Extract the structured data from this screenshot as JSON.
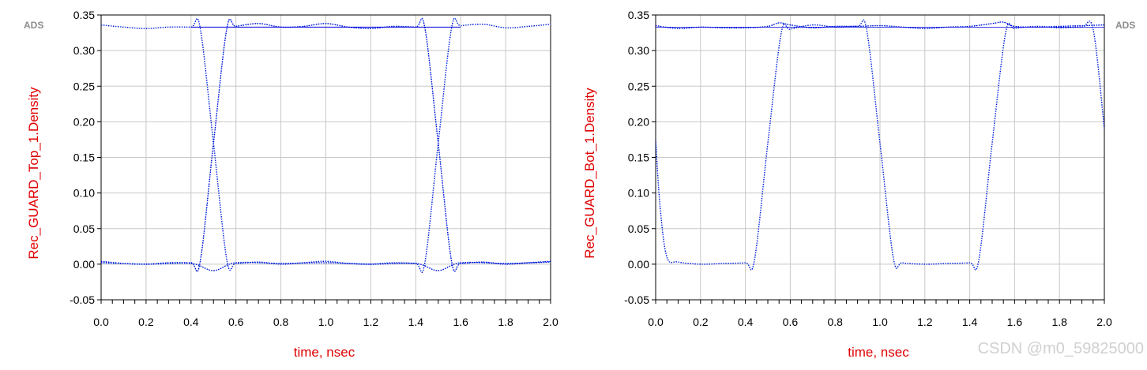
{
  "watermark": "CSDN @m0_59825000",
  "colors": {
    "trace": "#0000e0",
    "trace_alt": "#00a0d0",
    "label": "#e00000",
    "grid": "#c8c8c8",
    "ads": "#8c8c8c"
  },
  "chart_data": [
    {
      "type": "line",
      "subtype": "eye-diagram",
      "badge": "ADS",
      "badge_side": "left",
      "ylabel": "Rec_GUARD_Top_1.Density",
      "xlabel": "time, nsec",
      "xlim": [
        0.0,
        2.0
      ],
      "ylim": [
        -0.05,
        0.35
      ],
      "x_ticks": [
        "0.0",
        "0.2",
        "0.4",
        "0.6",
        "0.8",
        "1.0",
        "1.2",
        "1.4",
        "1.6",
        "1.8",
        "2.0"
      ],
      "y_ticks": [
        "-0.05",
        "0.00",
        "0.05",
        "0.10",
        "0.15",
        "0.20",
        "0.25",
        "0.30",
        "0.35"
      ],
      "grid": true,
      "levels": {
        "high": 0.333,
        "low": 0.0
      },
      "transitions": [
        {
          "center": 0.5,
          "width": 0.12
        },
        {
          "center": 1.5,
          "width": 0.12
        }
      ],
      "series": [
        {
          "x": [
            0.0,
            0.1,
            0.2,
            0.3,
            0.4,
            0.44,
            0.5,
            0.56,
            0.6,
            0.7,
            0.8,
            0.9,
            1.0,
            1.1,
            1.2,
            1.3,
            1.4,
            1.44,
            1.5,
            1.56,
            1.6,
            1.7,
            1.8,
            1.9,
            2.0
          ],
          "y": [
            0.336,
            0.333,
            0.331,
            0.333,
            0.333,
            0.333,
            0.17,
            0.005,
            0.001,
            0.003,
            0.0,
            0.002,
            0.004,
            0.001,
            0.0,
            0.002,
            0.001,
            0.001,
            0.17,
            0.333,
            0.335,
            0.337,
            0.332,
            0.334,
            0.337
          ]
        },
        {
          "x": [
            0.0,
            0.1,
            0.2,
            0.3,
            0.4,
            0.44,
            0.5,
            0.56,
            0.6,
            0.7,
            0.8,
            0.9,
            1.0,
            1.1,
            1.2,
            1.3,
            1.4,
            1.44,
            1.5,
            1.56,
            1.6,
            1.7,
            1.8,
            1.9,
            2.0
          ],
          "y": [
            0.004,
            0.001,
            0.0,
            0.002,
            0.002,
            0.002,
            0.17,
            0.332,
            0.334,
            0.338,
            0.333,
            0.334,
            0.338,
            0.333,
            0.331,
            0.334,
            0.333,
            0.333,
            0.17,
            0.003,
            0.001,
            0.003,
            0.0,
            0.002,
            0.004
          ]
        },
        {
          "x": [
            0.0,
            0.2,
            0.4,
            0.5,
            0.6,
            0.8,
            1.0,
            1.2,
            1.4,
            1.5,
            1.6,
            1.8,
            2.0
          ],
          "y": [
            0.002,
            0.0,
            0.001,
            -0.009,
            0.002,
            0.001,
            0.002,
            0.0,
            0.001,
            -0.009,
            0.002,
            0.001,
            0.003
          ]
        }
      ]
    },
    {
      "type": "line",
      "subtype": "eye-diagram",
      "badge": "ADS",
      "badge_side": "right",
      "ylabel": "Rec_GUARD_Bot_1.Density",
      "xlabel": "time, nsec",
      "xlim": [
        0.0,
        2.0
      ],
      "ylim": [
        -0.05,
        0.35
      ],
      "x_ticks": [
        "0.0",
        "0.2",
        "0.4",
        "0.6",
        "0.8",
        "1.0",
        "1.2",
        "1.4",
        "1.6",
        "1.8",
        "2.0"
      ],
      "y_ticks": [
        "-0.05",
        "0.00",
        "0.05",
        "0.10",
        "0.15",
        "0.20",
        "0.25",
        "0.30",
        "0.35"
      ],
      "grid": true,
      "levels": {
        "high": 0.333,
        "low": 0.0
      },
      "series": [
        {
          "x": [
            0.0,
            0.02,
            0.05,
            0.1,
            0.2,
            0.3,
            0.4,
            0.44,
            0.5,
            0.56,
            0.6,
            0.7,
            0.8,
            0.9,
            0.94,
            1.0,
            1.06,
            1.1,
            1.2,
            1.3,
            1.4,
            1.44,
            1.5,
            1.56,
            1.6,
            1.7,
            1.8,
            1.9,
            1.95,
            2.0
          ],
          "y": [
            0.175,
            0.08,
            0.01,
            0.003,
            0.0,
            0.001,
            0.002,
            0.005,
            0.17,
            0.325,
            0.33,
            0.336,
            0.333,
            0.334,
            0.33,
            0.17,
            0.008,
            0.002,
            0.0,
            0.001,
            0.002,
            0.005,
            0.17,
            0.325,
            0.331,
            0.334,
            0.332,
            0.333,
            0.33,
            0.19
          ]
        },
        {
          "x": [
            0.0,
            0.1,
            0.2,
            0.3,
            0.4,
            0.5,
            0.55,
            0.6,
            0.7,
            0.8,
            0.9,
            1.0,
            1.1,
            1.2,
            1.3,
            1.4,
            1.5,
            1.55,
            1.6,
            1.7,
            1.8,
            1.9,
            2.0
          ],
          "y": [
            0.335,
            0.331,
            0.333,
            0.332,
            0.332,
            0.334,
            0.339,
            0.336,
            0.332,
            0.334,
            0.334,
            0.335,
            0.333,
            0.331,
            0.333,
            0.334,
            0.338,
            0.34,
            0.334,
            0.333,
            0.334,
            0.335,
            0.336
          ]
        }
      ]
    }
  ]
}
